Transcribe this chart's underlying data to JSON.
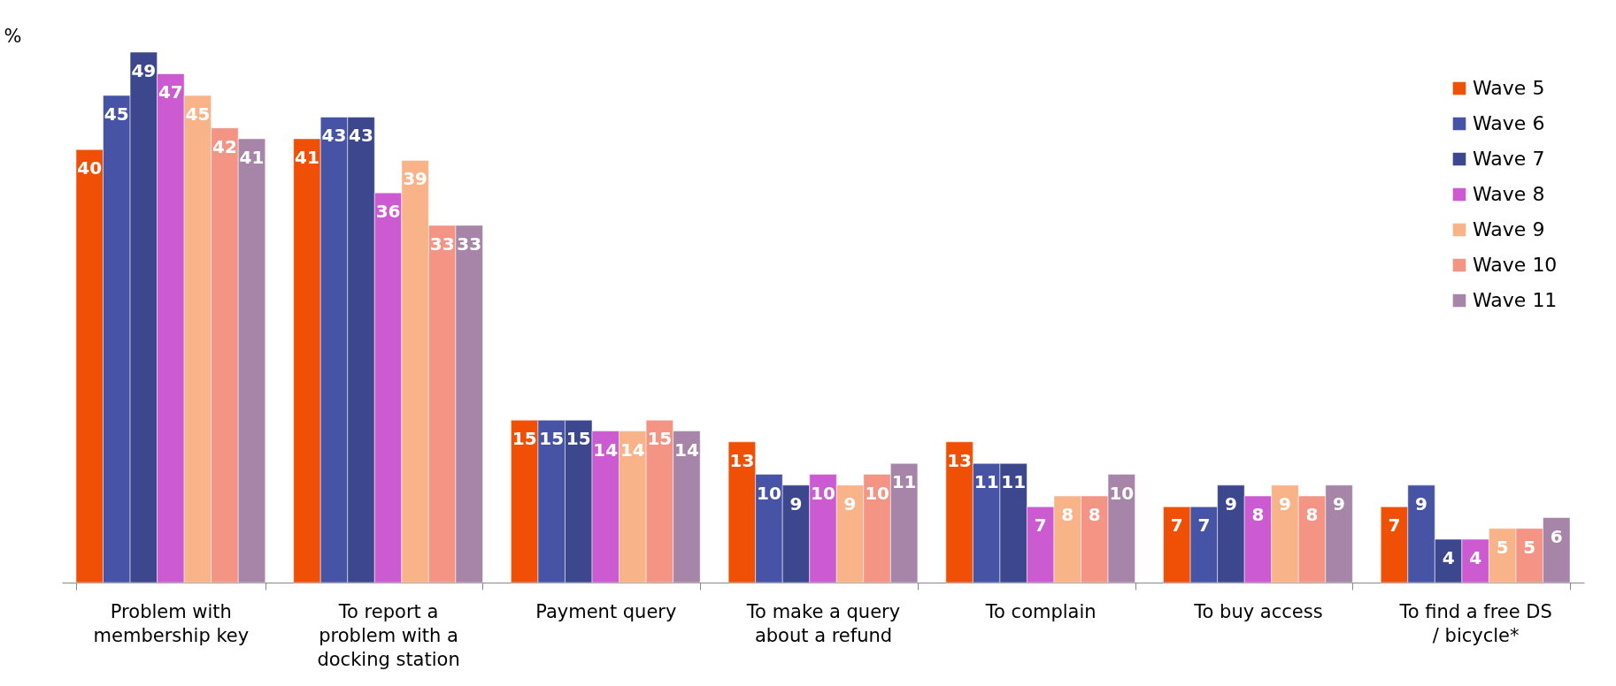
{
  "chart_data": {
    "type": "bar",
    "ylabel": "%",
    "categories": [
      "Problem with membership key",
      "To report a problem with a docking station",
      "Payment query",
      "To make a query about a refund",
      "To complain",
      "To buy access",
      "To find a free DS / bicycle*"
    ],
    "series": [
      {
        "name": "Wave 5",
        "color": "#f05006",
        "values": [
          40,
          41,
          15,
          13,
          13,
          7,
          7
        ]
      },
      {
        "name": "Wave 6",
        "color": "#4754a6",
        "values": [
          45,
          43,
          15,
          10,
          11,
          7,
          9
        ]
      },
      {
        "name": "Wave 7",
        "color": "#3c478e",
        "values": [
          49,
          43,
          15,
          9,
          11,
          9,
          4
        ]
      },
      {
        "name": "Wave 8",
        "color": "#cc5bd2",
        "values": [
          47,
          36,
          14,
          10,
          7,
          8,
          4
        ]
      },
      {
        "name": "Wave 9",
        "color": "#f9b388",
        "values": [
          45,
          39,
          14,
          9,
          8,
          9,
          5
        ]
      },
      {
        "name": "Wave 10",
        "color": "#f39484",
        "values": [
          42,
          33,
          15,
          10,
          8,
          8,
          5
        ]
      },
      {
        "name": "Wave 11",
        "color": "#a685a8",
        "values": [
          41,
          33,
          14,
          11,
          10,
          9,
          6
        ]
      }
    ],
    "data_labels": true,
    "legend": "top right",
    "grid": false
  }
}
